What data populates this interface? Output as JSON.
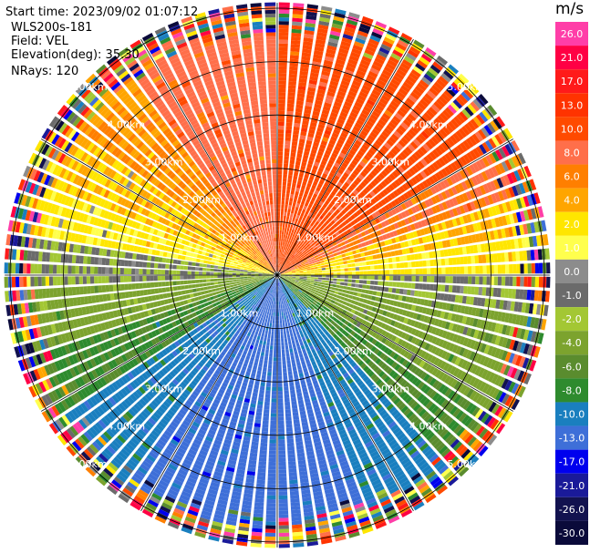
{
  "header": {
    "start_time": "Start time: 2023/09/02 01:07:12",
    "instrument": "WLS200s-181",
    "field": "Field: VEL",
    "elevation": "Elevation(deg): 35.30",
    "nrays": "NRays: 120"
  },
  "chart_data": {
    "type": "ppi",
    "field": "VEL",
    "units": "m/s",
    "n_rays": 120,
    "range_rings_km": [
      1.0,
      2.0,
      3.0,
      4.0,
      5.0
    ],
    "ring_labels": [
      "1.00km",
      "2.00km",
      "3.00km",
      "4.00km",
      "5.00km"
    ],
    "max_range_km": 5.1,
    "sectors": [
      {
        "az_from": 0,
        "az_to": 60,
        "velocity": 11.0
      },
      {
        "az_from": 60,
        "az_to": 72,
        "velocity": 8.0
      },
      {
        "az_from": 72,
        "az_to": 82,
        "velocity": 4.0
      },
      {
        "az_from": 82,
        "az_to": 90,
        "velocity": 2.5
      },
      {
        "az_from": 90,
        "az_to": 100,
        "velocity": -1.0
      },
      {
        "az_from": 100,
        "az_to": 122,
        "velocity": -3.0
      },
      {
        "az_from": 122,
        "az_to": 138,
        "velocity": -6.0
      },
      {
        "az_from": 138,
        "az_to": 160,
        "velocity": -9.0
      },
      {
        "az_from": 160,
        "az_to": 215,
        "velocity": -11.0
      },
      {
        "az_from": 215,
        "az_to": 238,
        "velocity": -9.0
      },
      {
        "az_from": 238,
        "az_to": 252,
        "velocity": -6.0
      },
      {
        "az_from": 252,
        "az_to": 268,
        "velocity": -3.0
      },
      {
        "az_from": 268,
        "az_to": 278,
        "velocity": -1.0
      },
      {
        "az_from": 278,
        "az_to": 290,
        "velocity": 2.5
      },
      {
        "az_from": 290,
        "az_to": 305,
        "velocity": 4.0
      },
      {
        "az_from": 305,
        "az_to": 325,
        "velocity": 6.0
      },
      {
        "az_from": 325,
        "az_to": 360,
        "velocity": 9.0
      }
    ],
    "noise_start_km": 4.4,
    "colorbar": {
      "title": "m/s",
      "tick_labels": [
        "26.0",
        "21.0",
        "17.0",
        "13.0",
        "10.0",
        "8.0",
        "6.0",
        "4.0",
        "2.0",
        "1.0",
        "0.0",
        "-1.0",
        "-2.0",
        "-4.0",
        "-6.0",
        "-8.0",
        "-10.0",
        "-13.0",
        "-17.0",
        "-21.0",
        "-26.0",
        "-30.0"
      ],
      "levels": [
        {
          "min": 26,
          "max": 30,
          "color": "#ff3ea8"
        },
        {
          "min": 21,
          "max": 26,
          "color": "#ff0044"
        },
        {
          "min": 17,
          "max": 21,
          "color": "#ff1a1a"
        },
        {
          "min": 13,
          "max": 17,
          "color": "#ff3300"
        },
        {
          "min": 10,
          "max": 13,
          "color": "#ff4a00"
        },
        {
          "min": 8,
          "max": 10,
          "color": "#ff6f4a"
        },
        {
          "min": 6,
          "max": 8,
          "color": "#ff7f00"
        },
        {
          "min": 4,
          "max": 6,
          "color": "#ffa500"
        },
        {
          "min": 2,
          "max": 4,
          "color": "#ffe600"
        },
        {
          "min": 1,
          "max": 2,
          "color": "#ffff4d"
        },
        {
          "min": 0,
          "max": 1,
          "color": "#8c8c8c"
        },
        {
          "min": -1,
          "max": 0,
          "color": "#6b6b6b"
        },
        {
          "min": -2,
          "max": -1,
          "color": "#a3c734"
        },
        {
          "min": -4,
          "max": -2,
          "color": "#7ca32e"
        },
        {
          "min": -6,
          "max": -4,
          "color": "#5a8c2e"
        },
        {
          "min": -8,
          "max": -6,
          "color": "#2e8b2e"
        },
        {
          "min": -10,
          "max": -8,
          "color": "#1a7fbf"
        },
        {
          "min": -13,
          "max": -10,
          "color": "#3e6fd8"
        },
        {
          "min": -17,
          "max": -13,
          "color": "#0000ee"
        },
        {
          "min": -21,
          "max": -17,
          "color": "#1a1a99"
        },
        {
          "min": -26,
          "max": -21,
          "color": "#12124f"
        },
        {
          "min": -30,
          "max": -26,
          "color": "#0a0a3a"
        }
      ]
    }
  }
}
